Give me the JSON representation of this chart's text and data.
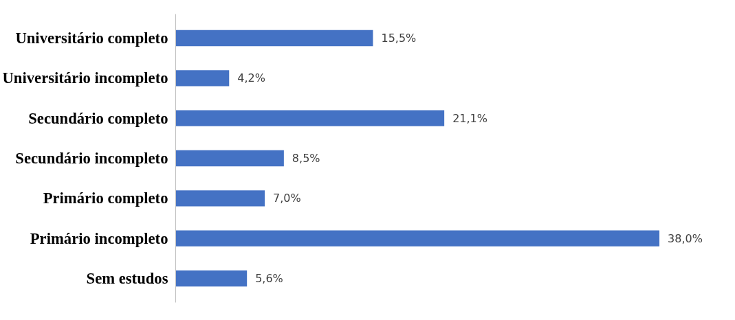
{
  "chart_data": {
    "type": "bar",
    "orientation": "horizontal",
    "categories": [
      "Universitário completo",
      "Universitário incompleto",
      "Secundário completo",
      "Secundário incompleto",
      "Primário completo",
      "Primário incompleto",
      "Sem estudos"
    ],
    "values": [
      15.5,
      4.2,
      21.1,
      8.5,
      7.0,
      38.0,
      5.6
    ],
    "value_labels": [
      "15,5%",
      "4,2%",
      "21,1%",
      "8,5%",
      "7,0%",
      "38,0%",
      "5,6%"
    ],
    "color": "#4472c4"
  }
}
